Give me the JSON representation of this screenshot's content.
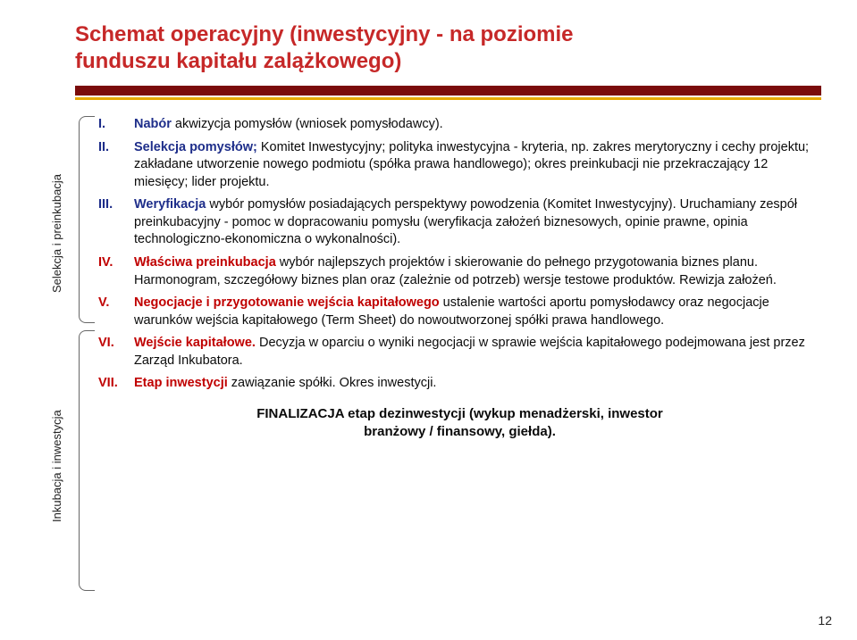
{
  "title": {
    "line1": "Schemat operacyjny (inwestycyjny - na poziomie",
    "line2": "funduszu kapitału zalążkowego)"
  },
  "side": {
    "sel": "Selekcja i preinkubacja",
    "ink": "Inkubacja i inwestycja"
  },
  "items": [
    {
      "num": "I.",
      "lead": "Nabór",
      "rest": " akwizycja pomysłów (wniosek pomysłodawcy)."
    },
    {
      "num": "II.",
      "lead": "Selekcja pomysłów;",
      "rest": " Komitet Inwestycyjny; polityka inwestycyjna - kryteria, np. zakres merytoryczny i cechy projektu; zakładane utworzenie nowego podmiotu (spółka prawa handlowego); okres preinkubacji nie przekraczający 12 miesięcy; lider projektu."
    },
    {
      "num": "III.",
      "lead": "Weryfikacja",
      "rest": " wybór pomysłów posiadających perspektywy powodzenia (Komitet Inwestycyjny). Uruchamiany zespół preinkubacyjny - pomoc w dopracowaniu pomysłu (weryfikacja założeń biznesowych, opinie prawne, opinia technologiczno-ekonomiczna o wykonalności)."
    },
    {
      "num": "IV.",
      "red": true,
      "lead": "Właściwa preinkubacja",
      "rest": " wybór najlepszych projektów i skierowanie do pełnego przygotowania biznes planu. Harmonogram, szczegółowy biznes plan oraz (zależnie od potrzeb) wersje testowe produktów. Rewizja założeń."
    },
    {
      "num": "V.",
      "red": true,
      "lead": "Negocjacje i przygotowanie wejścia kapitałowego",
      "rest": " ustalenie wartości aportu pomysłodawcy oraz negocjacje warunków wejścia kapitałowego (Term Sheet) do nowoutworzonej spółki prawa handlowego."
    },
    {
      "num": "VI.",
      "red": true,
      "lead": "Wejście kapitałowe.",
      "rest": " Decyzja w oparciu o wyniki negocjacji w sprawie wejścia kapitałowego podejmowana jest przez Zarząd Inkubatora."
    },
    {
      "num": "VII.",
      "red": true,
      "lead": "Etap inwestycji",
      "rest": " zawiązanie spółki. Okres inwestycji."
    }
  ],
  "final": {
    "line1": "FINALIZACJA etap dezinwestycji (wykup menadżerski, inwestor",
    "line2": "branżowy / finansowy, giełda)."
  },
  "page": "12",
  "colors": {
    "title": "#c62828",
    "ruleDark": "#7a0b0b",
    "ruleOrange": "#e6a800",
    "textBlue": "#1e2e8a",
    "textRed": "#c00000",
    "textBlack": "#0a0a0a",
    "bracket": "#666666"
  }
}
